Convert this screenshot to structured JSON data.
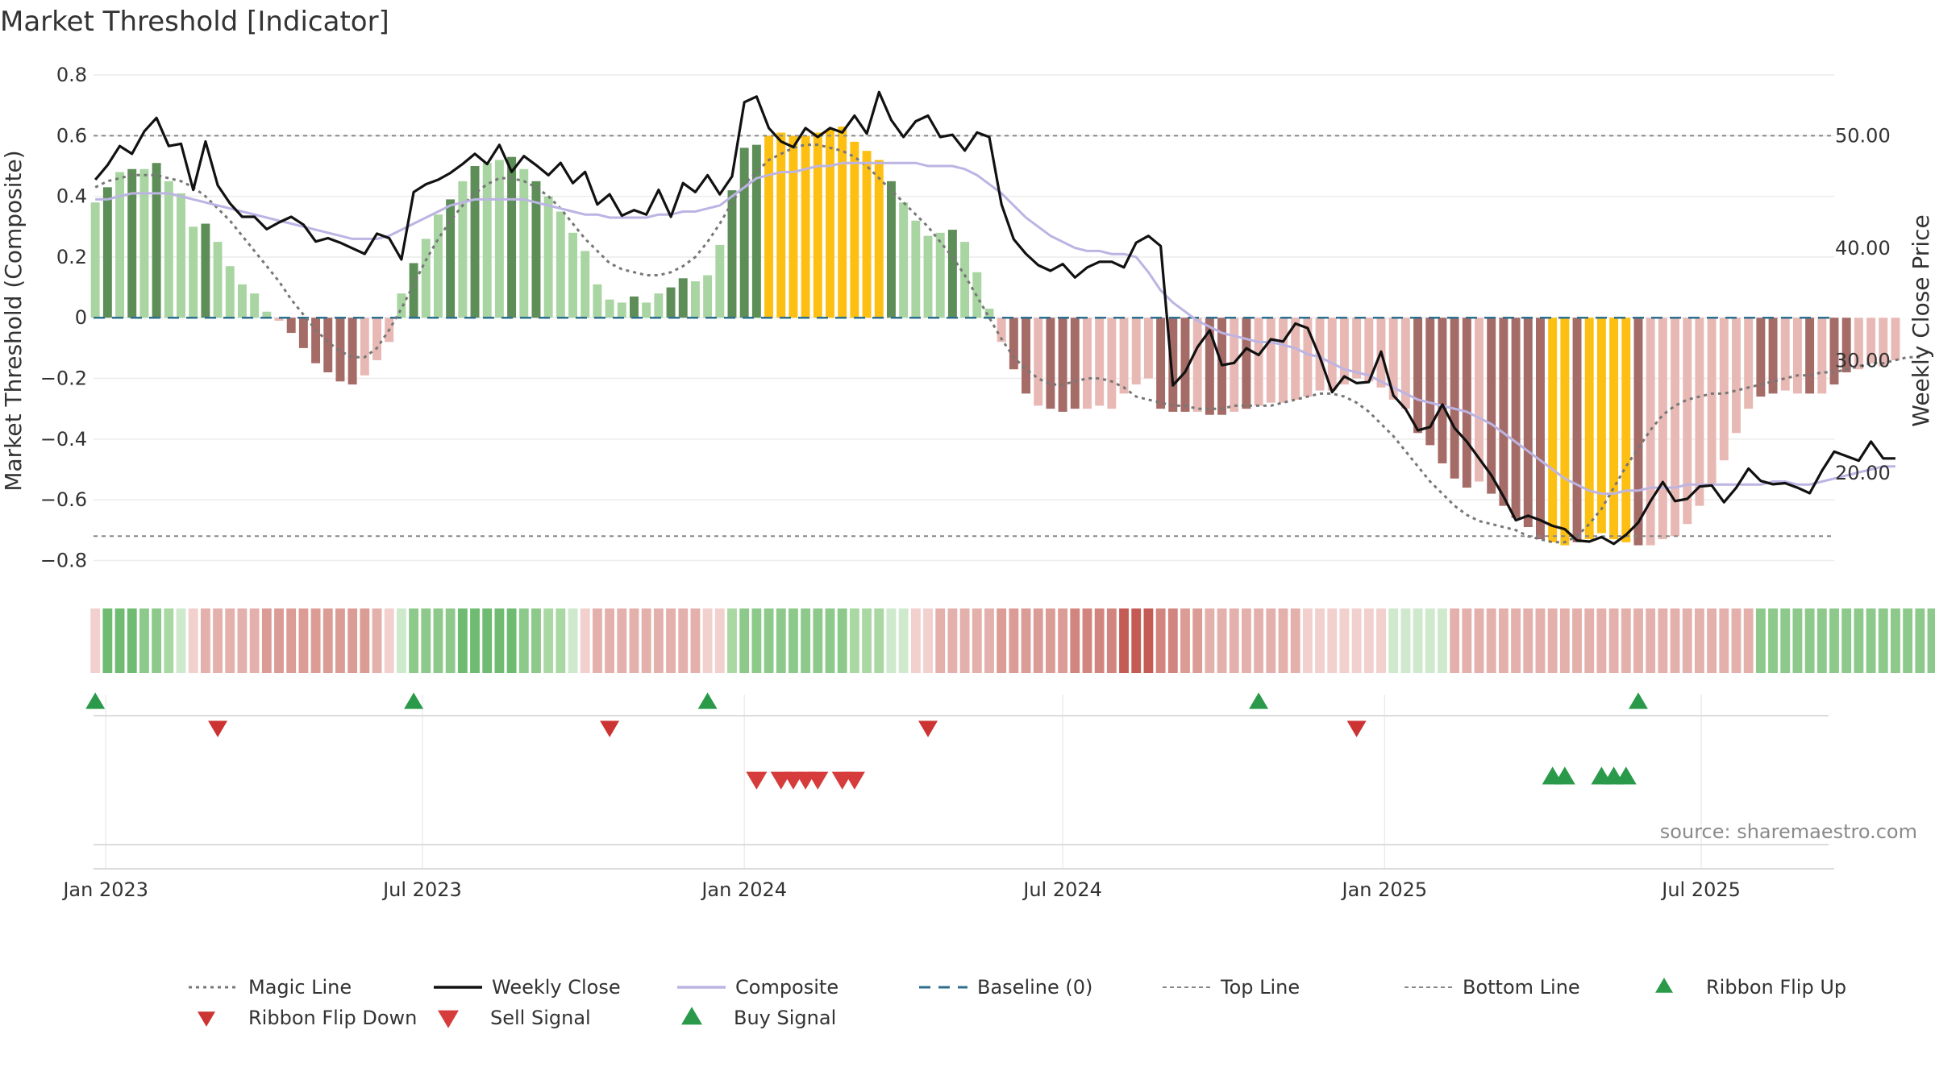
{
  "chart_data": {
    "type": "bar",
    "title": "Market Threshold [Indicator]",
    "ylabel": "Market Threshold (Composite)",
    "y2label": "Weekly Close Price",
    "source": "source: sharemaestro.com",
    "ylim": [
      -0.86,
      0.84
    ],
    "y2lim": [
      10.6,
      56.5
    ],
    "xlim": [
      "2022-12-25",
      "2025-09-15"
    ],
    "yticks": [
      {
        "v": 0.8,
        "label": "0.8"
      },
      {
        "v": 0.6,
        "label": "0.6"
      },
      {
        "v": 0.4,
        "label": "0.4"
      },
      {
        "v": 0.2,
        "label": "0.2"
      },
      {
        "v": 0,
        "label": "0"
      },
      {
        "v": -0.2,
        "label": "−0.2"
      },
      {
        "v": -0.4,
        "label": "−0.4"
      },
      {
        "v": -0.6,
        "label": "−0.6"
      },
      {
        "v": -0.8,
        "label": "−0.8"
      }
    ],
    "y2ticks": [
      {
        "v": 50,
        "label": "50.00"
      },
      {
        "v": 40,
        "label": "40.00"
      },
      {
        "v": 30,
        "label": "30.00"
      },
      {
        "v": 20,
        "label": "20.00"
      }
    ],
    "xticks": [
      {
        "date": "2023-01-01",
        "label": "Jan 2023"
      },
      {
        "date": "2023-07-01",
        "label": "Jul 2023"
      },
      {
        "date": "2024-01-01",
        "label": "Jan 2024"
      },
      {
        "date": "2024-07-01",
        "label": "Jul 2024"
      },
      {
        "date": "2025-01-01",
        "label": "Jan 2025"
      },
      {
        "date": "2025-07-01",
        "label": "Jul 2025"
      }
    ],
    "weeks_start": "2022-12-26",
    "composite_bars": [
      0.38,
      0.43,
      0.48,
      0.49,
      0.49,
      0.51,
      0.45,
      0.41,
      0.3,
      0.31,
      0.25,
      0.17,
      0.11,
      0.08,
      0.02,
      -0.01,
      -0.05,
      -0.1,
      -0.15,
      -0.18,
      -0.21,
      -0.22,
      -0.19,
      -0.14,
      -0.08,
      0.08,
      0.18,
      0.26,
      0.34,
      0.39,
      0.45,
      0.5,
      0.51,
      0.52,
      0.53,
      0.49,
      0.45,
      0.4,
      0.35,
      0.28,
      0.22,
      0.11,
      0.06,
      0.05,
      0.07,
      0.05,
      0.08,
      0.1,
      0.13,
      0.12,
      0.14,
      0.24,
      0.42,
      0.56,
      0.57,
      0.6,
      0.61,
      0.6,
      0.6,
      0.61,
      0.62,
      0.63,
      0.58,
      0.55,
      0.52,
      0.45,
      0.38,
      0.32,
      0.27,
      0.28,
      0.29,
      0.25,
      0.15,
      0.03,
      -0.08,
      -0.17,
      -0.25,
      -0.29,
      -0.3,
      -0.31,
      -0.3,
      -0.3,
      -0.29,
      -0.3,
      -0.25,
      -0.22,
      -0.2,
      -0.3,
      -0.31,
      -0.31,
      -0.31,
      -0.32,
      -0.32,
      -0.31,
      -0.3,
      -0.29,
      -0.28,
      -0.28,
      -0.27,
      -0.26,
      -0.24,
      -0.24,
      -0.22,
      -0.2,
      -0.21,
      -0.23,
      -0.27,
      -0.3,
      -0.38,
      -0.42,
      -0.48,
      -0.53,
      -0.56,
      -0.54,
      -0.58,
      -0.62,
      -0.66,
      -0.69,
      -0.73,
      -0.74,
      -0.75,
      -0.74,
      -0.73,
      -0.71,
      -0.73,
      -0.74,
      -0.75,
      -0.75,
      -0.73,
      -0.72,
      -0.68,
      -0.62,
      -0.55,
      -0.47,
      -0.38,
      -0.3,
      -0.26,
      -0.25,
      -0.24,
      -0.25,
      -0.25,
      -0.25,
      -0.22,
      -0.18,
      -0.17,
      -0.15,
      -0.16,
      -0.14
    ],
    "composite_bar_tones": [
      1,
      2,
      1,
      2,
      1,
      2,
      1,
      0,
      0,
      2,
      0,
      0,
      0,
      0,
      0,
      0,
      2,
      2,
      2,
      2,
      2,
      2,
      1,
      0,
      0,
      0,
      2,
      1,
      1,
      2,
      1,
      2,
      1,
      0,
      2,
      1,
      2,
      0,
      0,
      0,
      0,
      0,
      0,
      0,
      2,
      1,
      1,
      2,
      2,
      1,
      1,
      1,
      2,
      2,
      2,
      3,
      3,
      3,
      3,
      3,
      3,
      3,
      3,
      3,
      3,
      2,
      1,
      0,
      0,
      0,
      2,
      1,
      0,
      0,
      0,
      2,
      2,
      1,
      2,
      2,
      2,
      1,
      1,
      1,
      0,
      1,
      1,
      2,
      2,
      2,
      1,
      2,
      2,
      1,
      2,
      0,
      1,
      1,
      1,
      0,
      0,
      1,
      1,
      1,
      0,
      0,
      0,
      1,
      2,
      2,
      2,
      2,
      2,
      1,
      2,
      2,
      2,
      2,
      2,
      3,
      3,
      2,
      3,
      3,
      3,
      3,
      2,
      1,
      0,
      0,
      0,
      0,
      0,
      0,
      0,
      0,
      2,
      2,
      0,
      0,
      2,
      0,
      2,
      2,
      0
    ],
    "weekly_close": [
      46.1,
      47.4,
      49.1,
      48.4,
      50.4,
      51.6,
      49.1,
      49.3,
      45.2,
      49.5,
      45.6,
      44.0,
      42.8,
      42.8,
      41.7,
      42.3,
      42.8,
      42.1,
      40.6,
      40.9,
      40.5,
      40.0,
      39.5,
      41.3,
      40.9,
      39.0,
      45.0,
      45.7,
      46.1,
      46.7,
      47.5,
      48.4,
      47.5,
      49.2,
      46.8,
      48.2,
      47.4,
      46.5,
      47.6,
      45.8,
      46.8,
      43.9,
      44.8,
      42.9,
      43.4,
      43.0,
      45.2,
      42.8,
      45.8,
      45.0,
      46.5,
      44.8,
      46.4,
      53.0,
      53.5,
      50.7,
      49.5,
      49.0,
      50.7,
      49.9,
      50.7,
      50.3,
      51.8,
      50.2,
      53.9,
      51.4,
      49.9,
      51.3,
      51.8,
      49.9,
      50.1,
      48.7,
      50.3,
      49.9,
      43.9,
      40.8,
      39.5,
      38.5,
      38.0,
      38.6,
      37.4,
      38.3,
      38.8,
      38.8,
      38.3,
      40.5,
      41.1,
      40.2,
      27.8,
      29.0,
      31.2,
      32.7,
      29.6,
      29.8,
      31.1,
      30.5,
      31.9,
      31.7,
      33.3,
      32.9,
      30.3,
      27.2,
      28.6,
      28.0,
      28.1,
      30.8,
      26.9,
      25.7,
      23.8,
      24.1,
      26.1,
      24.0,
      22.8,
      21.3,
      19.8,
      17.9,
      15.8,
      16.2,
      15.8,
      15.3,
      15.0,
      14.0,
      13.9,
      14.3,
      13.7,
      14.5,
      15.6,
      17.5,
      19.2,
      17.5,
      17.7,
      18.8,
      18.9,
      17.4,
      18.7,
      20.4,
      19.3,
      19.0,
      19.1,
      18.7,
      18.2,
      20.2,
      21.9,
      21.5,
      21.1,
      22.8,
      21.3,
      21.3
    ],
    "composite_line": [
      0.39,
      0.39,
      0.4,
      0.41,
      0.41,
      0.41,
      0.41,
      0.4,
      0.39,
      0.38,
      0.37,
      0.36,
      0.35,
      0.34,
      0.33,
      0.32,
      0.31,
      0.3,
      0.29,
      0.28,
      0.27,
      0.26,
      0.26,
      0.26,
      0.27,
      0.29,
      0.31,
      0.33,
      0.35,
      0.37,
      0.38,
      0.39,
      0.39,
      0.39,
      0.39,
      0.39,
      0.38,
      0.37,
      0.36,
      0.35,
      0.34,
      0.34,
      0.33,
      0.33,
      0.33,
      0.33,
      0.34,
      0.34,
      0.35,
      0.35,
      0.36,
      0.37,
      0.4,
      0.43,
      0.46,
      0.47,
      0.48,
      0.48,
      0.49,
      0.5,
      0.5,
      0.51,
      0.51,
      0.51,
      0.51,
      0.51,
      0.51,
      0.51,
      0.5,
      0.5,
      0.5,
      0.49,
      0.47,
      0.44,
      0.41,
      0.37,
      0.33,
      0.3,
      0.27,
      0.25,
      0.23,
      0.22,
      0.22,
      0.21,
      0.21,
      0.2,
      0.15,
      0.09,
      0.05,
      0.02,
      -0.01,
      -0.03,
      -0.05,
      -0.06,
      -0.07,
      -0.08,
      -0.08,
      -0.09,
      -0.1,
      -0.12,
      -0.13,
      -0.15,
      -0.17,
      -0.18,
      -0.19,
      -0.21,
      -0.23,
      -0.25,
      -0.27,
      -0.28,
      -0.29,
      -0.3,
      -0.31,
      -0.33,
      -0.35,
      -0.38,
      -0.41,
      -0.44,
      -0.47,
      -0.5,
      -0.53,
      -0.55,
      -0.57,
      -0.58,
      -0.58,
      -0.57,
      -0.57,
      -0.56,
      -0.56,
      -0.56,
      -0.55,
      -0.55,
      -0.55,
      -0.55,
      -0.55,
      -0.55,
      -0.55,
      -0.54,
      -0.54,
      -0.55,
      -0.55,
      -0.54,
      -0.53,
      -0.52,
      -0.51,
      -0.5,
      -0.49,
      -0.49
    ],
    "magic_line": [
      0.43,
      0.45,
      0.46,
      0.47,
      0.47,
      0.47,
      0.46,
      0.45,
      0.43,
      0.4,
      0.36,
      0.32,
      0.27,
      0.22,
      0.17,
      0.12,
      0.06,
      0.01,
      -0.04,
      -0.08,
      -0.11,
      -0.13,
      -0.13,
      -0.1,
      -0.04,
      0.03,
      0.11,
      0.19,
      0.26,
      0.32,
      0.37,
      0.41,
      0.44,
      0.46,
      0.46,
      0.45,
      0.43,
      0.4,
      0.36,
      0.31,
      0.26,
      0.22,
      0.18,
      0.16,
      0.15,
      0.14,
      0.14,
      0.15,
      0.17,
      0.2,
      0.25,
      0.31,
      0.38,
      0.44,
      0.48,
      0.52,
      0.54,
      0.56,
      0.57,
      0.57,
      0.56,
      0.55,
      0.53,
      0.5,
      0.46,
      0.42,
      0.38,
      0.34,
      0.3,
      0.25,
      0.2,
      0.14,
      0.07,
      0.0,
      -0.07,
      -0.13,
      -0.17,
      -0.2,
      -0.22,
      -0.22,
      -0.21,
      -0.2,
      -0.2,
      -0.21,
      -0.23,
      -0.26,
      -0.27,
      -0.28,
      -0.29,
      -0.29,
      -0.3,
      -0.3,
      -0.3,
      -0.29,
      -0.29,
      -0.29,
      -0.29,
      -0.28,
      -0.27,
      -0.26,
      -0.25,
      -0.25,
      -0.26,
      -0.28,
      -0.31,
      -0.35,
      -0.39,
      -0.44,
      -0.49,
      -0.54,
      -0.58,
      -0.62,
      -0.65,
      -0.67,
      -0.68,
      -0.69,
      -0.7,
      -0.72,
      -0.73,
      -0.74,
      -0.74,
      -0.72,
      -0.68,
      -0.63,
      -0.56,
      -0.49,
      -0.43,
      -0.37,
      -0.32,
      -0.29,
      -0.27,
      -0.26,
      -0.25,
      -0.25,
      -0.24,
      -0.23,
      -0.22,
      -0.21,
      -0.2,
      -0.19,
      -0.19,
      -0.18,
      -0.18,
      -0.17,
      -0.16,
      -0.15,
      -0.15,
      -0.14,
      -0.13,
      -0.13
    ],
    "top_line": 0.6,
    "bottom_line": -0.72,
    "baseline": 0,
    "ribbon_tones": [
      -1,
      4,
      4,
      4,
      3,
      3,
      2,
      1,
      -1,
      -2,
      -2,
      -2,
      -2,
      -2,
      -3,
      -3,
      -3,
      -3,
      -3,
      -3,
      -3,
      -3,
      -3,
      -2,
      -1,
      1,
      3,
      3,
      3,
      3,
      4,
      4,
      4,
      4,
      4,
      3,
      3,
      2,
      2,
      1,
      -1,
      -2,
      -2,
      -2,
      -2,
      -2,
      -2,
      -2,
      -2,
      -2,
      -1,
      -1,
      2,
      3,
      3,
      3,
      3,
      3,
      3,
      3,
      3,
      3,
      2,
      2,
      2,
      1,
      1,
      -1,
      -1,
      -2,
      -2,
      -2,
      -2,
      -2,
      -3,
      -3,
      -3,
      -3,
      -3,
      -3,
      -4,
      -4,
      -4,
      -4,
      -5,
      -5,
      -5,
      -4,
      -4,
      -3,
      -3,
      -2,
      -2,
      -2,
      -2,
      -2,
      -2,
      -2,
      -2,
      -1,
      -1,
      -1,
      -1,
      -1,
      -1,
      -1,
      1,
      1,
      1,
      1,
      1,
      -2,
      -2,
      -2,
      -2,
      -2,
      -2,
      -2,
      -2,
      -2,
      -2,
      -2,
      -2,
      -2,
      -2,
      -2,
      -2,
      -2,
      -2,
      -2,
      -2,
      -2,
      -2,
      -2,
      -2,
      -2,
      3,
      3,
      3,
      3,
      3,
      3,
      3,
      3,
      3,
      3,
      3,
      3,
      3,
      3,
      3,
      3,
      3,
      3,
      3,
      3,
      2,
      2,
      2,
      2,
      2,
      2
    ],
    "ribbon_flip_up": [
      "2022-12-26",
      "2023-06-26",
      "2023-12-11",
      "2024-10-21",
      "2025-05-26"
    ],
    "ribbon_flip_down": [
      "2023-03-06",
      "2023-10-16",
      "2024-04-15",
      "2024-12-16"
    ],
    "sell_signals": [
      "2024-01-08",
      "2024-01-22",
      "2024-01-29",
      "2024-02-05",
      "2024-02-12",
      "2024-02-26",
      "2024-03-04"
    ],
    "buy_signals": [
      "2025-04-07",
      "2025-04-14",
      "2025-05-05",
      "2025-05-12",
      "2025-05-19"
    ],
    "colors": {
      "bar_pos_light": "#a9d5a2",
      "bar_pos_dark": "#5d8e58",
      "bar_neg_light": "#e8b9b4",
      "bar_neg_dark": "#a56b67",
      "bar_extreme": "#fdc012",
      "close": "#111111",
      "composite": "#bcb4e3",
      "magic": "#777777",
      "baseline": "#2e6f8e",
      "threshold": "#888888",
      "buy": "#2a9a4a",
      "sell": "#d63c3c",
      "ribbon_flip_down": "#cc3333"
    },
    "legend": [
      {
        "key": "magic",
        "label": "Magic Line"
      },
      {
        "key": "close",
        "label": "Weekly Close"
      },
      {
        "key": "composite",
        "label": "Composite"
      },
      {
        "key": "baseline",
        "label": "Baseline (0)"
      },
      {
        "key": "top",
        "label": "Top Line"
      },
      {
        "key": "bottom",
        "label": "Bottom Line"
      },
      {
        "key": "flipup",
        "label": "Ribbon Flip Up"
      },
      {
        "key": "flipdown",
        "label": "Ribbon Flip Down"
      },
      {
        "key": "sell",
        "label": "Sell Signal"
      },
      {
        "key": "buy",
        "label": "Buy Signal"
      }
    ]
  }
}
